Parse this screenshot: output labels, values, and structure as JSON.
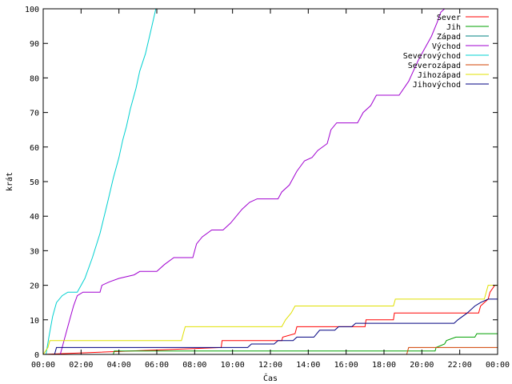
{
  "chart_data": {
    "type": "line",
    "xlabel": "Čas",
    "ylabel": "krát",
    "xlim": [
      0,
      24
    ],
    "ylim": [
      0,
      100
    ],
    "grid": false,
    "legend_placement": "top-right",
    "x_ticks": [
      {
        "v": 0,
        "label": "00:00"
      },
      {
        "v": 2,
        "label": "02:00"
      },
      {
        "v": 4,
        "label": "04:00"
      },
      {
        "v": 6,
        "label": "06:00"
      },
      {
        "v": 8,
        "label": "08:00"
      },
      {
        "v": 10,
        "label": "10:00"
      },
      {
        "v": 12,
        "label": "12:00"
      },
      {
        "v": 14,
        "label": "14:00"
      },
      {
        "v": 16,
        "label": "16:00"
      },
      {
        "v": 18,
        "label": "18:00"
      },
      {
        "v": 20,
        "label": "20:00"
      },
      {
        "v": 22,
        "label": "22:00"
      },
      {
        "v": 24,
        "label": "00:00"
      }
    ],
    "y_ticks": [
      0,
      10,
      20,
      30,
      40,
      50,
      60,
      70,
      80,
      90,
      100
    ],
    "series": [
      {
        "name": "Sever",
        "color": "#ff0000",
        "points": [
          [
            0,
            0
          ],
          [
            9.4,
            2
          ],
          [
            9.45,
            4
          ],
          [
            12.6,
            4
          ],
          [
            12.65,
            5
          ],
          [
            13.3,
            6
          ],
          [
            13.4,
            8
          ],
          [
            17,
            8
          ],
          [
            17.05,
            10
          ],
          [
            18.5,
            10
          ],
          [
            18.55,
            12
          ],
          [
            23,
            12
          ],
          [
            23.1,
            14
          ],
          [
            23.5,
            16
          ],
          [
            23.6,
            18
          ],
          [
            23.85,
            20
          ]
        ]
      },
      {
        "name": "Jih",
        "color": "#00a000",
        "points": [
          [
            0,
            0
          ],
          [
            3.7,
            0
          ],
          [
            3.75,
            1
          ],
          [
            20.7,
            1
          ],
          [
            20.75,
            2
          ],
          [
            21.2,
            3
          ],
          [
            21.3,
            4
          ],
          [
            21.8,
            5
          ],
          [
            21.9,
            5
          ],
          [
            22.8,
            5
          ],
          [
            22.9,
            6
          ],
          [
            24,
            6
          ]
        ]
      },
      {
        "name": "Západ",
        "color": "#008080",
        "points": [
          [
            0,
            0
          ],
          [
            24,
            0
          ]
        ]
      },
      {
        "name": "Východ",
        "color": "#a000d0",
        "points": [
          [
            0.9,
            0
          ],
          [
            1.0,
            2
          ],
          [
            1.1,
            4
          ],
          [
            1.4,
            10
          ],
          [
            1.6,
            14
          ],
          [
            1.8,
            17
          ],
          [
            2.1,
            18
          ],
          [
            3.0,
            18
          ],
          [
            3.1,
            20
          ],
          [
            3.5,
            21
          ],
          [
            4.0,
            22
          ],
          [
            4.8,
            23
          ],
          [
            5.1,
            24
          ],
          [
            6.0,
            24
          ],
          [
            6.4,
            26
          ],
          [
            6.9,
            28
          ],
          [
            7.9,
            28
          ],
          [
            8.1,
            32
          ],
          [
            8.4,
            34
          ],
          [
            8.9,
            36
          ],
          [
            9.5,
            36
          ],
          [
            9.9,
            38
          ],
          [
            10.2,
            40
          ],
          [
            10.5,
            42
          ],
          [
            10.9,
            44
          ],
          [
            11.3,
            45
          ],
          [
            12.4,
            45
          ],
          [
            12.6,
            47
          ],
          [
            13.0,
            49
          ],
          [
            13.4,
            53
          ],
          [
            13.8,
            56
          ],
          [
            14.2,
            57
          ],
          [
            14.5,
            59
          ],
          [
            15.0,
            61
          ],
          [
            15.2,
            65
          ],
          [
            15.5,
            67
          ],
          [
            16.6,
            67
          ],
          [
            16.9,
            70
          ],
          [
            17.3,
            72
          ],
          [
            17.6,
            75
          ],
          [
            18.8,
            75
          ],
          [
            19.3,
            79
          ],
          [
            19.8,
            85
          ],
          [
            20.1,
            88
          ],
          [
            20.5,
            92
          ],
          [
            20.8,
            96
          ],
          [
            21.0,
            99
          ],
          [
            21.2,
            100
          ]
        ]
      },
      {
        "name": "Severovýchod",
        "color": "#00d0d0",
        "points": [
          [
            0.15,
            0
          ],
          [
            0.3,
            5
          ],
          [
            0.5,
            11
          ],
          [
            0.7,
            15
          ],
          [
            1.0,
            17
          ],
          [
            1.3,
            18
          ],
          [
            1.8,
            18
          ],
          [
            2.2,
            22
          ],
          [
            2.6,
            28
          ],
          [
            3.0,
            35
          ],
          [
            3.4,
            44
          ],
          [
            3.7,
            51
          ],
          [
            4.0,
            57
          ],
          [
            4.2,
            62
          ],
          [
            4.4,
            66
          ],
          [
            4.6,
            71
          ],
          [
            4.9,
            77
          ],
          [
            5.1,
            82
          ],
          [
            5.4,
            87
          ],
          [
            5.7,
            94
          ],
          [
            5.95,
            100
          ]
        ]
      },
      {
        "name": "Severozápad",
        "color": "#d04000",
        "points": [
          [
            0,
            0
          ],
          [
            19.2,
            0
          ],
          [
            19.3,
            2
          ],
          [
            24,
            2
          ]
        ]
      },
      {
        "name": "Jihozápad",
        "color": "#e0e000",
        "points": [
          [
            0,
            0
          ],
          [
            0.25,
            2
          ],
          [
            0.35,
            4
          ],
          [
            7.3,
            4
          ],
          [
            7.4,
            6
          ],
          [
            7.5,
            8
          ],
          [
            12.6,
            8
          ],
          [
            12.8,
            10
          ],
          [
            13.1,
            12
          ],
          [
            13.3,
            14
          ],
          [
            18.5,
            14
          ],
          [
            18.6,
            16
          ],
          [
            23.3,
            16
          ],
          [
            23.4,
            18
          ],
          [
            23.5,
            20
          ],
          [
            24,
            20
          ]
        ]
      },
      {
        "name": "Jihovýchod",
        "color": "#000080",
        "points": [
          [
            0,
            0
          ],
          [
            0.6,
            0
          ],
          [
            0.7,
            2
          ],
          [
            10.8,
            2
          ],
          [
            11.0,
            3
          ],
          [
            12.2,
            3
          ],
          [
            12.4,
            4
          ],
          [
            13.2,
            4
          ],
          [
            13.4,
            5
          ],
          [
            14.3,
            5
          ],
          [
            14.6,
            7
          ],
          [
            15.4,
            7
          ],
          [
            15.6,
            8
          ],
          [
            16.3,
            8
          ],
          [
            16.5,
            9
          ],
          [
            21.7,
            9
          ],
          [
            21.9,
            10
          ],
          [
            22.4,
            12
          ],
          [
            22.8,
            14
          ],
          [
            23.1,
            15
          ],
          [
            23.5,
            16
          ],
          [
            24,
            16
          ]
        ]
      }
    ]
  }
}
